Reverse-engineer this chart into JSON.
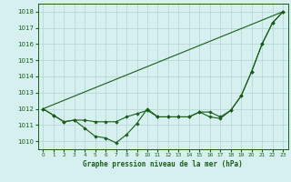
{
  "xlabel": "Graphe pression niveau de la mer (hPa)",
  "background_color": "#d6f0f0",
  "grid_color": "#b8d8d8",
  "line_color": "#1a5c1a",
  "marker_color": "#1a5c1a",
  "xlim": [
    -0.5,
    23.5
  ],
  "ylim": [
    1009.5,
    1018.5
  ],
  "yticks": [
    1010,
    1011,
    1012,
    1013,
    1014,
    1015,
    1016,
    1017,
    1018
  ],
  "xticks": [
    0,
    1,
    2,
    3,
    4,
    5,
    6,
    7,
    8,
    9,
    10,
    11,
    12,
    13,
    14,
    15,
    16,
    17,
    18,
    19,
    20,
    21,
    22,
    23
  ],
  "series": [
    {
      "x": [
        0,
        1,
        2,
        3,
        4,
        5,
        6,
        7,
        8,
        9,
        10,
        11,
        12,
        13,
        14,
        15,
        16,
        17,
        18,
        19,
        20,
        21,
        22,
        23
      ],
      "y": [
        1012.0,
        1011.6,
        1011.2,
        1011.3,
        1011.3,
        1011.2,
        1011.2,
        1011.2,
        1011.5,
        1011.7,
        1011.9,
        1011.5,
        1011.5,
        1011.5,
        1011.5,
        1011.8,
        1011.8,
        1011.5,
        1011.9,
        1012.8,
        1014.3,
        1016.0,
        1017.3,
        1018.0
      ],
      "marker": true
    },
    {
      "x": [
        0,
        1,
        2,
        3,
        4,
        5,
        6,
        7,
        8,
        9,
        10,
        11,
        12,
        13,
        14,
        15,
        16,
        17,
        18,
        19,
        20,
        21,
        22,
        23
      ],
      "y": [
        1012.0,
        1011.6,
        1011.2,
        1011.3,
        1010.8,
        1010.3,
        1010.2,
        1009.9,
        1010.4,
        1011.1,
        1012.0,
        1011.5,
        1011.5,
        1011.5,
        1011.5,
        1011.8,
        1011.5,
        1011.4,
        1011.9,
        1012.8,
        1014.3,
        1016.0,
        1017.3,
        1018.0
      ],
      "marker": true
    },
    {
      "x": [
        0,
        23
      ],
      "y": [
        1012.0,
        1018.0
      ],
      "marker": false
    }
  ]
}
